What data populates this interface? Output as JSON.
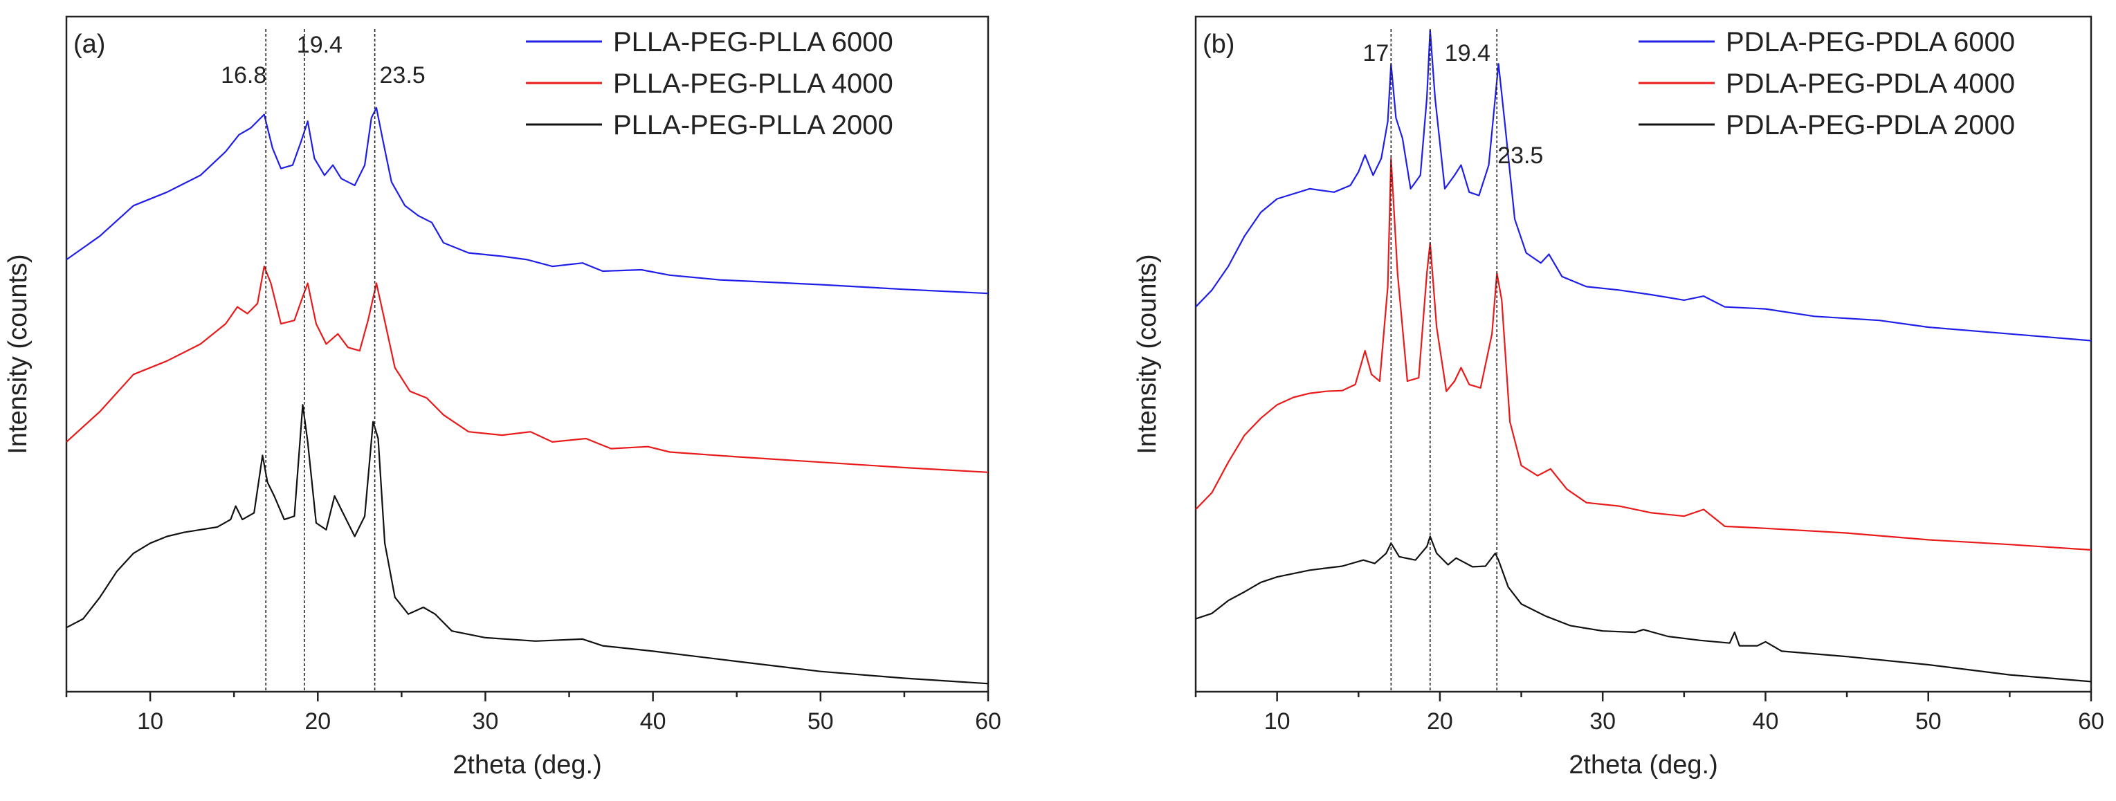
{
  "chart_data": [
    {
      "type": "line",
      "panel_label": "(a)",
      "xlabel": "2theta (deg.)",
      "ylabel": "Intensity (counts)",
      "xlim": [
        5,
        60
      ],
      "xticks": [
        10,
        20,
        30,
        40,
        50,
        60
      ],
      "ylim": [
        0,
        100
      ],
      "y_tick_labels": false,
      "legend_position": "top-right",
      "peak_lines": [
        {
          "x": 16.9,
          "label": "16.8"
        },
        {
          "x": 19.2,
          "label": "19.4"
        },
        {
          "x": 23.4,
          "label": "23.5"
        }
      ],
      "series": [
        {
          "name": "PLLA-PEG-PLLA 6000",
          "color": "#1f1fe8",
          "points": [
            [
              5,
              64.0
            ],
            [
              7,
              67.5
            ],
            [
              9,
              72.0
            ],
            [
              11,
              74.0
            ],
            [
              13,
              76.5
            ],
            [
              14.5,
              80.0
            ],
            [
              15.3,
              82.5
            ],
            [
              16,
              83.5
            ],
            [
              16.8,
              85.5
            ],
            [
              17.3,
              80.5
            ],
            [
              17.8,
              77.5
            ],
            [
              18.5,
              78.0
            ],
            [
              19.0,
              81.5
            ],
            [
              19.4,
              84.5
            ],
            [
              19.8,
              79.0
            ],
            [
              20.4,
              76.5
            ],
            [
              20.9,
              78.0
            ],
            [
              21.4,
              76.0
            ],
            [
              22.2,
              75.0
            ],
            [
              22.8,
              78.0
            ],
            [
              23.2,
              85.0
            ],
            [
              23.5,
              86.5
            ],
            [
              23.9,
              81.5
            ],
            [
              24.4,
              75.5
            ],
            [
              25.2,
              72.0
            ],
            [
              26,
              70.5
            ],
            [
              26.8,
              69.5
            ],
            [
              27.5,
              66.5
            ],
            [
              29,
              65.0
            ],
            [
              31,
              64.5
            ],
            [
              32.5,
              64.0
            ],
            [
              34,
              63.0
            ],
            [
              35.8,
              63.5
            ],
            [
              37,
              62.3
            ],
            [
              39.3,
              62.5
            ],
            [
              41,
              61.7
            ],
            [
              44,
              61.0
            ],
            [
              50,
              60.3
            ],
            [
              55,
              59.6
            ],
            [
              60,
              59.0
            ]
          ]
        },
        {
          "name": "PLLA-PEG-PLLA 4000",
          "color": "#e81a1a",
          "points": [
            [
              5,
              37.0
            ],
            [
              7,
              41.5
            ],
            [
              9,
              47.0
            ],
            [
              11,
              49.0
            ],
            [
              13,
              51.5
            ],
            [
              14.5,
              54.5
            ],
            [
              15.2,
              57.0
            ],
            [
              15.8,
              56.0
            ],
            [
              16.4,
              57.5
            ],
            [
              16.8,
              63.0
            ],
            [
              17.2,
              60.5
            ],
            [
              17.8,
              54.5
            ],
            [
              18.6,
              55.0
            ],
            [
              19.1,
              58.5
            ],
            [
              19.4,
              60.5
            ],
            [
              19.9,
              54.5
            ],
            [
              20.5,
              51.5
            ],
            [
              21.2,
              53.0
            ],
            [
              21.8,
              51.0
            ],
            [
              22.5,
              50.5
            ],
            [
              23,
              55.0
            ],
            [
              23.5,
              60.5
            ],
            [
              23.9,
              56.0
            ],
            [
              24.6,
              48.0
            ],
            [
              25.5,
              44.5
            ],
            [
              26.5,
              43.5
            ],
            [
              27.5,
              41.0
            ],
            [
              29,
              38.5
            ],
            [
              31,
              38.0
            ],
            [
              32.7,
              38.5
            ],
            [
              34,
              37.0
            ],
            [
              36,
              37.5
            ],
            [
              37.5,
              36.0
            ],
            [
              39.7,
              36.3
            ],
            [
              41,
              35.5
            ],
            [
              45,
              34.8
            ],
            [
              50,
              34.0
            ],
            [
              55,
              33.2
            ],
            [
              60,
              32.5
            ]
          ]
        },
        {
          "name": "PLLA-PEG-PLLA 2000",
          "color": "#111111",
          "points": [
            [
              5,
              9.5
            ],
            [
              6,
              10.8
            ],
            [
              7,
              14.0
            ],
            [
              8,
              17.8
            ],
            [
              9,
              20.5
            ],
            [
              10,
              22.0
            ],
            [
              11,
              23.0
            ],
            [
              12,
              23.6
            ],
            [
              13,
              24.0
            ],
            [
              14,
              24.4
            ],
            [
              14.8,
              25.5
            ],
            [
              15.1,
              27.5
            ],
            [
              15.5,
              25.5
            ],
            [
              16.2,
              26.5
            ],
            [
              16.7,
              35.0
            ],
            [
              17.0,
              31.0
            ],
            [
              17.4,
              29.0
            ],
            [
              18.0,
              25.5
            ],
            [
              18.6,
              26.0
            ],
            [
              19.1,
              42.5
            ],
            [
              19.4,
              37.0
            ],
            [
              19.9,
              25.0
            ],
            [
              20.5,
              24.0
            ],
            [
              21.0,
              29.0
            ],
            [
              21.6,
              26.0
            ],
            [
              22.2,
              23.0
            ],
            [
              22.8,
              26.0
            ],
            [
              23.3,
              40.0
            ],
            [
              23.6,
              37.5
            ],
            [
              24.0,
              22.0
            ],
            [
              24.6,
              14.0
            ],
            [
              25.4,
              11.5
            ],
            [
              26.3,
              12.5
            ],
            [
              27.0,
              11.5
            ],
            [
              28,
              9.0
            ],
            [
              30,
              8.0
            ],
            [
              33,
              7.5
            ],
            [
              35.8,
              7.8
            ],
            [
              37,
              6.8
            ],
            [
              40,
              6.0
            ],
            [
              45,
              4.5
            ],
            [
              50,
              3.0
            ],
            [
              55,
              2.0
            ],
            [
              60,
              1.2
            ]
          ]
        }
      ]
    },
    {
      "type": "line",
      "panel_label": "(b)",
      "xlabel": "2theta (deg.)",
      "ylabel": "Intensity (counts)",
      "xlim": [
        5,
        60
      ],
      "xticks": [
        10,
        20,
        30,
        40,
        50,
        60
      ],
      "ylim": [
        0,
        100
      ],
      "y_tick_labels": false,
      "legend_position": "top-right",
      "peak_lines": [
        {
          "x": 17.0,
          "label": "17"
        },
        {
          "x": 19.4,
          "label": "19.4"
        },
        {
          "x": 23.5,
          "label": "23.5"
        }
      ],
      "series": [
        {
          "name": "PDLA-PEG-PDLA 6000",
          "color": "#1f1fe8",
          "points": [
            [
              5,
              57.0
            ],
            [
              6,
              59.5
            ],
            [
              7,
              63.0
            ],
            [
              8,
              67.5
            ],
            [
              9,
              71.0
            ],
            [
              10,
              73.0
            ],
            [
              12,
              74.5
            ],
            [
              13.5,
              74.0
            ],
            [
              14.5,
              75.0
            ],
            [
              15.0,
              77.0
            ],
            [
              15.4,
              79.5
            ],
            [
              15.9,
              76.5
            ],
            [
              16.4,
              79.0
            ],
            [
              16.8,
              84.5
            ],
            [
              17.0,
              93.0
            ],
            [
              17.3,
              85.0
            ],
            [
              17.7,
              82.0
            ],
            [
              18.2,
              74.5
            ],
            [
              18.8,
              76.5
            ],
            [
              19.2,
              88.0
            ],
            [
              19.4,
              98.0
            ],
            [
              19.7,
              88.0
            ],
            [
              20.3,
              74.5
            ],
            [
              20.9,
              76.5
            ],
            [
              21.3,
              78.0
            ],
            [
              21.8,
              74.0
            ],
            [
              22.4,
              73.5
            ],
            [
              23.0,
              78.0
            ],
            [
              23.4,
              88.0
            ],
            [
              23.6,
              93.0
            ],
            [
              24.0,
              84.0
            ],
            [
              24.6,
              70.0
            ],
            [
              25.3,
              65.0
            ],
            [
              26.2,
              63.5
            ],
            [
              26.7,
              64.8
            ],
            [
              27.5,
              61.5
            ],
            [
              29,
              60.0
            ],
            [
              31,
              59.5
            ],
            [
              33,
              58.8
            ],
            [
              35,
              58.0
            ],
            [
              36.2,
              58.6
            ],
            [
              37.5,
              57.0
            ],
            [
              40,
              56.7
            ],
            [
              43,
              55.6
            ],
            [
              47,
              55.0
            ],
            [
              50,
              54.0
            ],
            [
              55,
              53.0
            ],
            [
              60,
              52.0
            ]
          ]
        },
        {
          "name": "PDLA-PEG-PDLA 4000",
          "color": "#e81a1a",
          "points": [
            [
              5,
              27.0
            ],
            [
              6,
              29.5
            ],
            [
              7,
              34.0
            ],
            [
              8,
              38.0
            ],
            [
              9,
              40.5
            ],
            [
              10,
              42.5
            ],
            [
              11,
              43.6
            ],
            [
              12,
              44.2
            ],
            [
              13,
              44.5
            ],
            [
              14,
              44.6
            ],
            [
              14.8,
              45.5
            ],
            [
              15.4,
              50.5
            ],
            [
              15.8,
              47.0
            ],
            [
              16.3,
              46.0
            ],
            [
              16.8,
              60.0
            ],
            [
              17.0,
              79.0
            ],
            [
              17.4,
              62.0
            ],
            [
              18.0,
              46.0
            ],
            [
              18.7,
              46.5
            ],
            [
              19.2,
              62.0
            ],
            [
              19.4,
              66.5
            ],
            [
              19.8,
              54.0
            ],
            [
              20.4,
              44.5
            ],
            [
              20.9,
              46.0
            ],
            [
              21.3,
              48.0
            ],
            [
              21.8,
              45.5
            ],
            [
              22.5,
              45.0
            ],
            [
              23.2,
              53.0
            ],
            [
              23.5,
              62.0
            ],
            [
              23.8,
              58.0
            ],
            [
              24.3,
              40.0
            ],
            [
              25.0,
              33.5
            ],
            [
              26,
              32.0
            ],
            [
              26.8,
              33.0
            ],
            [
              27.8,
              30.0
            ],
            [
              29,
              28.0
            ],
            [
              31,
              27.5
            ],
            [
              33,
              26.5
            ],
            [
              35,
              26.0
            ],
            [
              36.2,
              27.0
            ],
            [
              37.5,
              24.5
            ],
            [
              40,
              24.2
            ],
            [
              45,
              23.5
            ],
            [
              50,
              22.5
            ],
            [
              55,
              21.8
            ],
            [
              60,
              21.0
            ]
          ]
        },
        {
          "name": "PDLA-PEG-PDLA 2000",
          "color": "#111111",
          "points": [
            [
              5,
              10.8
            ],
            [
              6,
              11.6
            ],
            [
              7,
              13.5
            ],
            [
              8,
              14.8
            ],
            [
              9,
              16.2
            ],
            [
              10,
              17.0
            ],
            [
              12,
              18.0
            ],
            [
              14,
              18.6
            ],
            [
              15.3,
              19.5
            ],
            [
              16.0,
              19.0
            ],
            [
              16.7,
              20.5
            ],
            [
              17.0,
              22.0
            ],
            [
              17.5,
              20.0
            ],
            [
              18.5,
              19.5
            ],
            [
              19.2,
              21.5
            ],
            [
              19.4,
              23.0
            ],
            [
              19.8,
              20.5
            ],
            [
              20.5,
              18.8
            ],
            [
              21.0,
              19.8
            ],
            [
              22.0,
              18.5
            ],
            [
              22.8,
              18.6
            ],
            [
              23.4,
              20.5
            ],
            [
              23.6,
              19.5
            ],
            [
              24.2,
              15.5
            ],
            [
              25,
              13.0
            ],
            [
              26.5,
              11.2
            ],
            [
              28,
              9.8
            ],
            [
              30,
              9.0
            ],
            [
              32,
              8.8
            ],
            [
              32.5,
              9.2
            ],
            [
              34,
              8.2
            ],
            [
              36,
              7.6
            ],
            [
              37.8,
              7.2
            ],
            [
              38.1,
              8.8
            ],
            [
              38.4,
              6.8
            ],
            [
              39.5,
              6.8
            ],
            [
              40,
              7.4
            ],
            [
              41,
              6.0
            ],
            [
              45,
              5.2
            ],
            [
              50,
              4.0
            ],
            [
              55,
              2.5
            ],
            [
              60,
              1.5
            ]
          ]
        }
      ]
    }
  ]
}
